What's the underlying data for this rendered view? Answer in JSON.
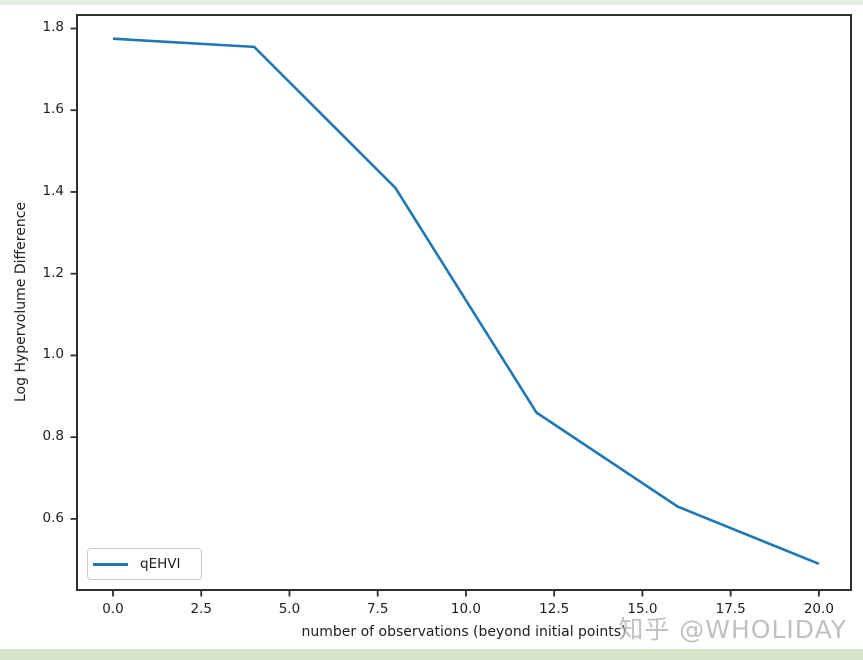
{
  "chart_data": {
    "type": "line",
    "title": "",
    "xlabel": "number of observations (beyond initial points)",
    "ylabel": "Log Hypervolume Difference",
    "x": [
      0,
      4,
      8,
      12,
      16,
      20
    ],
    "series": [
      {
        "name": "qEHVI",
        "color": "#1f77b4",
        "y": [
          1.775,
          1.755,
          1.41,
          0.86,
          0.63,
          0.49
        ]
      }
    ],
    "xlim": [
      -1.02,
      20.91
    ],
    "ylim": [
      0.426,
      1.833
    ],
    "xticks": [
      0,
      2.5,
      5,
      7.5,
      10,
      12.5,
      15,
      17.5,
      20
    ],
    "xtick_labels": [
      "0.0",
      "2.5",
      "5.0",
      "7.5",
      "10.0",
      "12.5",
      "15.0",
      "17.5",
      "20.0"
    ],
    "yticks": [
      0.6,
      0.8,
      1.0,
      1.2,
      1.4,
      1.6,
      1.8
    ],
    "ytick_labels": [
      "0.6",
      "0.8",
      "1.0",
      "1.2",
      "1.4",
      "1.6",
      "1.8"
    ],
    "legend": {
      "location": "lower-left",
      "entries": [
        "qEHVI"
      ]
    },
    "grid": false,
    "markers": false
  },
  "watermark": {
    "text": "知乎 @WHOLIDAY"
  },
  "colors": {
    "line": "#1f77b4",
    "spine": "#2e2e2e",
    "text": "#1f1f1f",
    "top_band": "#e3efe1",
    "bottom_band": "#d4e5ca",
    "watermark": "#b6b6b6",
    "legend_border": "#cccccc"
  }
}
